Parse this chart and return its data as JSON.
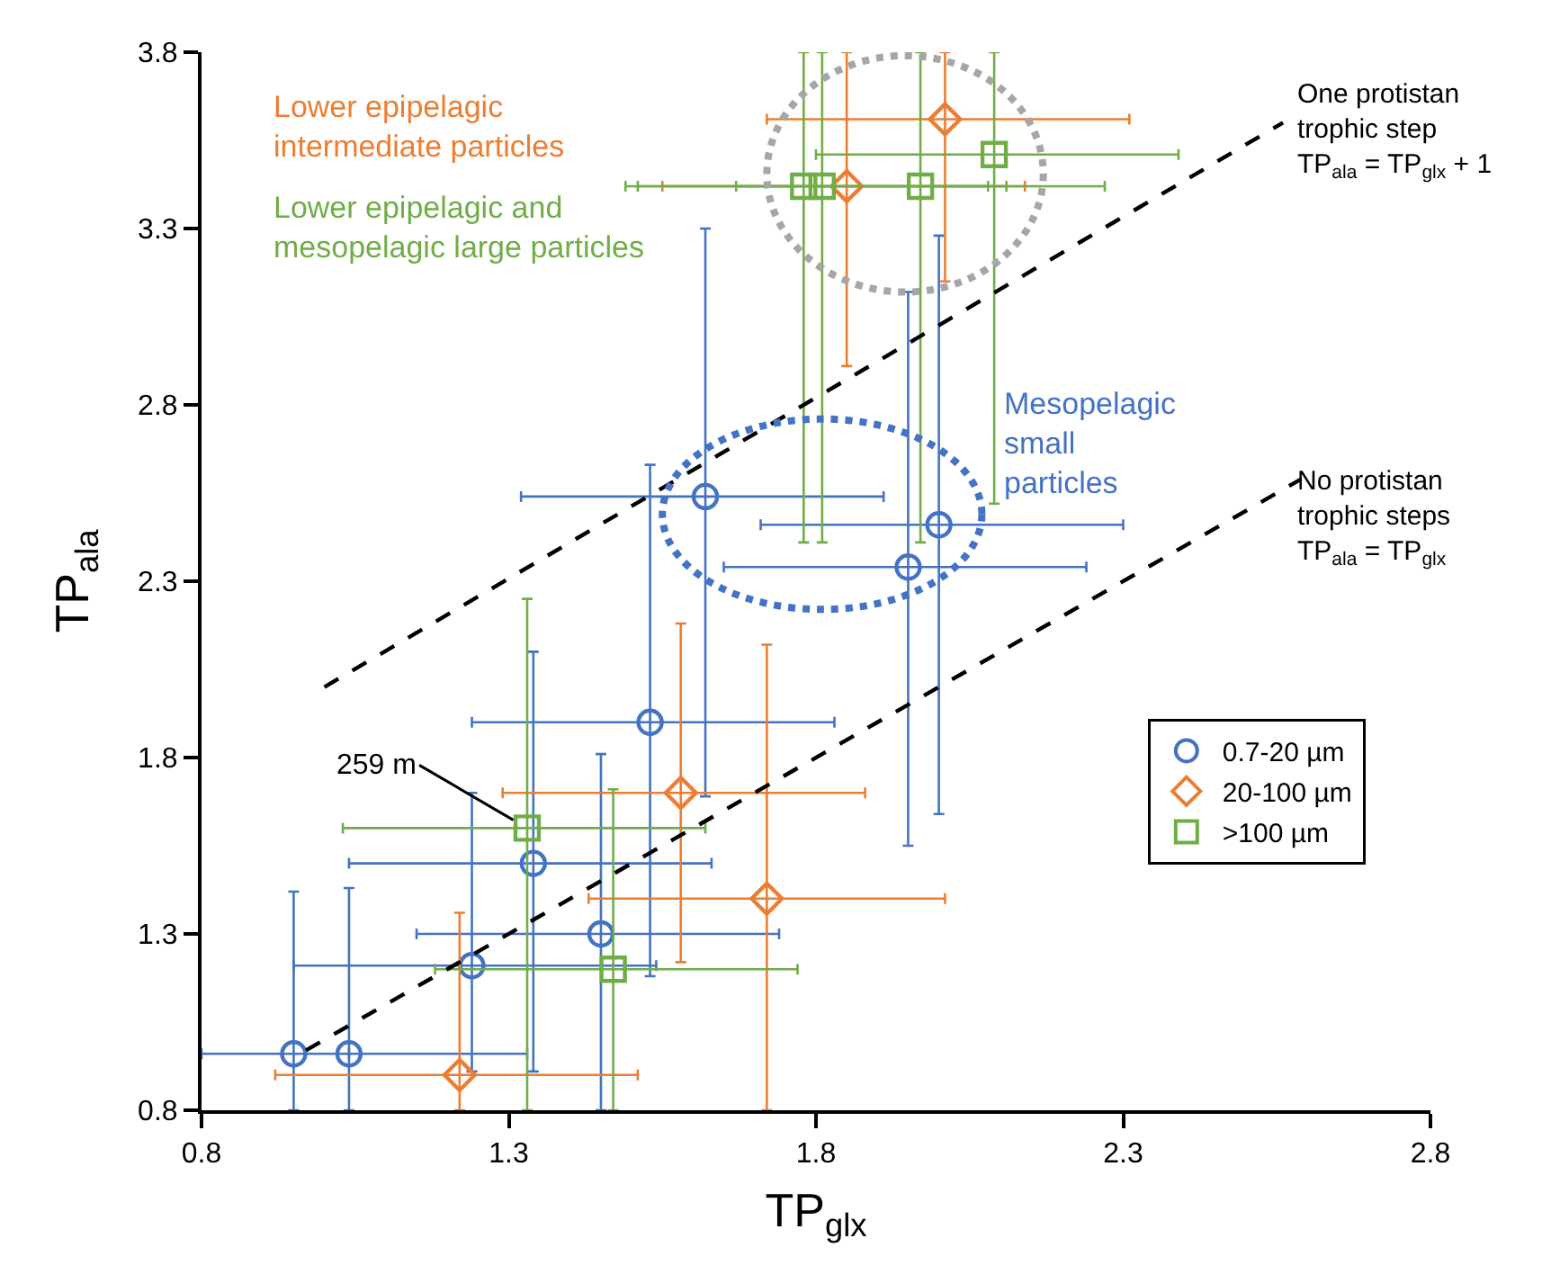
{
  "chart_data": {
    "type": "scatter",
    "xlabel": "TP$_{glx}$",
    "ylabel": "TP$_{ala}$",
    "xlim": [
      0.8,
      2.8
    ],
    "xticks": [
      0.8,
      1.3,
      1.8,
      2.3,
      2.8
    ],
    "ylim": [
      0.8,
      3.8
    ],
    "yticks": [
      0.8,
      1.3,
      1.8,
      2.3,
      2.8,
      3.3,
      3.8
    ],
    "grid": false,
    "legend": "bottom right",
    "series": [
      {
        "name": "0.7-20 µm",
        "color": "#4472c4",
        "marker": "circle",
        "x": [
          0.95,
          1.04,
          1.24,
          1.34,
          1.45,
          1.53,
          1.62,
          1.95,
          2.0
        ],
        "values": [
          0.96,
          0.96,
          1.21,
          1.5,
          1.3,
          1.9,
          2.54,
          2.34,
          2.46
        ],
        "xerrors": [
          [
            0.8,
            1.33
          ],
          null,
          [
            0.95,
            1.54
          ],
          [
            1.04,
            1.63
          ],
          [
            1.15,
            1.74
          ],
          [
            1.24,
            1.83
          ],
          [
            1.32,
            1.91
          ],
          [
            1.65,
            2.24
          ],
          [
            1.71,
            2.3
          ]
        ],
        "errors": [
          [
            0.8,
            1.42
          ],
          [
            0.8,
            1.43
          ],
          [
            0.91,
            1.7
          ],
          [
            0.91,
            2.1
          ],
          [
            0.8,
            1.81
          ],
          [
            1.18,
            2.63
          ],
          [
            1.69,
            3.3
          ],
          [
            1.55,
            3.12
          ],
          [
            1.64,
            3.28
          ]
        ]
      },
      {
        "name": "20-100 µm",
        "color": "#ed7d31",
        "marker": "diamond",
        "x": [
          1.22,
          1.58,
          1.72,
          1.85,
          2.01
        ],
        "values": [
          0.9,
          1.7,
          1.4,
          3.42,
          3.61
        ],
        "xerrors": [
          [
            0.92,
            1.51
          ],
          [
            1.29,
            1.88
          ],
          [
            1.43,
            2.01
          ],
          [
            1.55,
            2.14
          ],
          [
            1.72,
            2.31
          ]
        ],
        "errors": [
          [
            0.8,
            1.36
          ],
          [
            1.22,
            2.18
          ],
          [
            0.8,
            2.12
          ],
          [
            2.91,
            3.8
          ],
          [
            3.15,
            3.8
          ]
        ]
      },
      {
        "name": ">100 µm",
        "color": "#70ad47",
        "marker": "square",
        "x": [
          1.33,
          1.47,
          1.78,
          1.81,
          1.97,
          2.09
        ],
        "values": [
          1.6,
          1.2,
          3.42,
          3.42,
          3.42,
          3.51
        ],
        "xerrors": [
          [
            1.03,
            1.62
          ],
          [
            1.18,
            1.77
          ],
          [
            1.49,
            2.08
          ],
          [
            1.51,
            2.11
          ],
          [
            1.67,
            2.27
          ],
          [
            1.8,
            2.39
          ]
        ],
        "errors": [
          [
            0.8,
            2.25
          ],
          [
            0.8,
            1.71
          ],
          [
            2.41,
            3.8
          ],
          [
            2.41,
            3.8
          ],
          [
            2.41,
            3.8
          ],
          [
            2.52,
            3.8
          ]
        ]
      },
      {
        "type": "line",
        "color": "#000000",
        "line_style": "dashed",
        "marker": "none",
        "x": [
          1.0,
          2.56
        ],
        "values": [
          2.0,
          3.6
        ]
      },
      {
        "type": "line",
        "color": "#000000",
        "line_style": "dashed",
        "marker": "none",
        "x": [
          0.97,
          2.59
        ],
        "values": [
          0.97,
          2.59
        ]
      }
    ],
    "annotations": [
      {
        "text": "259 m",
        "x": 1.33,
        "y": 1.6
      },
      "Lower epipelagic\nintermediate particles",
      "Lower epipelagic and\nmesopelagic large particles",
      "Mesopelagic\nsmall\nparticles",
      "One protistan\ntrophic step\nTP$_{ala}$ = TP$_{glx}$ + 1",
      "No protistan\ntrophic steps\nTP$_{ala}$ = TP$_{glx}$"
    ]
  }
}
